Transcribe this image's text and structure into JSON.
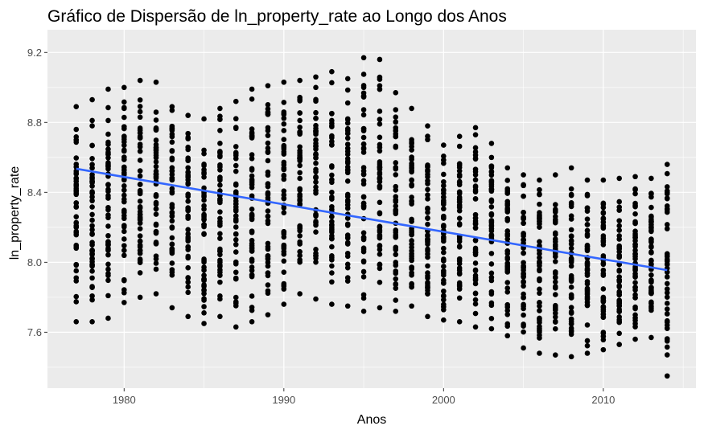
{
  "chart_data": {
    "type": "scatter",
    "title": "Gráfico de Dispersão de ln_property_rate ao Longo dos Anos",
    "xlabel": "Anos",
    "ylabel": "ln_property_rate",
    "xlim": [
      1975.2,
      2015.8
    ],
    "ylim": [
      7.28,
      9.33
    ],
    "x_ticks": [
      1980,
      1990,
      2000,
      2010
    ],
    "x_tick_labels": [
      "1980",
      "1990",
      "2000",
      "2010"
    ],
    "y_ticks": [
      7.6,
      8.0,
      8.4,
      8.8,
      9.2
    ],
    "y_tick_labels": [
      "7.6",
      "8.0",
      "8.4",
      "8.8",
      "9.2"
    ],
    "grid": true,
    "panel_background": "#ebebeb",
    "point_color": "#000000",
    "trend_color": "#3366ff",
    "trend_line": {
      "x": [
        1977,
        2014
      ],
      "y": [
        8.535,
        7.955
      ]
    },
    "year_ranges": [
      {
        "x": 1977,
        "min": 7.66,
        "max": 8.89
      },
      {
        "x": 1978,
        "min": 7.66,
        "max": 8.93
      },
      {
        "x": 1979,
        "min": 7.68,
        "max": 8.99
      },
      {
        "x": 1980,
        "min": 7.77,
        "max": 9.0
      },
      {
        "x": 1981,
        "min": 7.8,
        "max": 9.04
      },
      {
        "x": 1982,
        "min": 7.82,
        "max": 9.03
      },
      {
        "x": 1983,
        "min": 7.74,
        "max": 8.89
      },
      {
        "x": 1984,
        "min": 7.69,
        "max": 8.84
      },
      {
        "x": 1985,
        "min": 7.65,
        "max": 8.82
      },
      {
        "x": 1986,
        "min": 7.69,
        "max": 8.88
      },
      {
        "x": 1987,
        "min": 7.63,
        "max": 8.92
      },
      {
        "x": 1988,
        "min": 7.66,
        "max": 8.99
      },
      {
        "x": 1989,
        "min": 7.7,
        "max": 9.01
      },
      {
        "x": 1990,
        "min": 7.76,
        "max": 9.03
      },
      {
        "x": 1991,
        "min": 7.82,
        "max": 9.04
      },
      {
        "x": 1992,
        "min": 7.79,
        "max": 9.06
      },
      {
        "x": 1993,
        "min": 7.76,
        "max": 9.09
      },
      {
        "x": 1994,
        "min": 7.75,
        "max": 9.05
      },
      {
        "x": 1995,
        "min": 7.72,
        "max": 9.17
      },
      {
        "x": 1996,
        "min": 7.74,
        "max": 9.16
      },
      {
        "x": 1997,
        "min": 7.72,
        "max": 8.97
      },
      {
        "x": 1998,
        "min": 7.75,
        "max": 8.88
      },
      {
        "x": 1999,
        "min": 7.69,
        "max": 8.78
      },
      {
        "x": 2000,
        "min": 7.67,
        "max": 8.67
      },
      {
        "x": 2001,
        "min": 7.66,
        "max": 8.72
      },
      {
        "x": 2002,
        "min": 7.63,
        "max": 8.77
      },
      {
        "x": 2003,
        "min": 7.62,
        "max": 8.68
      },
      {
        "x": 2004,
        "min": 7.58,
        "max": 8.54
      },
      {
        "x": 2005,
        "min": 7.51,
        "max": 8.5
      },
      {
        "x": 2006,
        "min": 7.48,
        "max": 8.47
      },
      {
        "x": 2007,
        "min": 7.47,
        "max": 8.5
      },
      {
        "x": 2008,
        "min": 7.46,
        "max": 8.54
      },
      {
        "x": 2009,
        "min": 7.48,
        "max": 8.47
      },
      {
        "x": 2010,
        "min": 7.5,
        "max": 8.47
      },
      {
        "x": 2011,
        "min": 7.53,
        "max": 8.48
      },
      {
        "x": 2012,
        "min": 7.56,
        "max": 8.49
      },
      {
        "x": 2013,
        "min": 7.57,
        "max": 8.48
      },
      {
        "x": 2014,
        "min": 7.35,
        "max": 8.56
      }
    ]
  }
}
